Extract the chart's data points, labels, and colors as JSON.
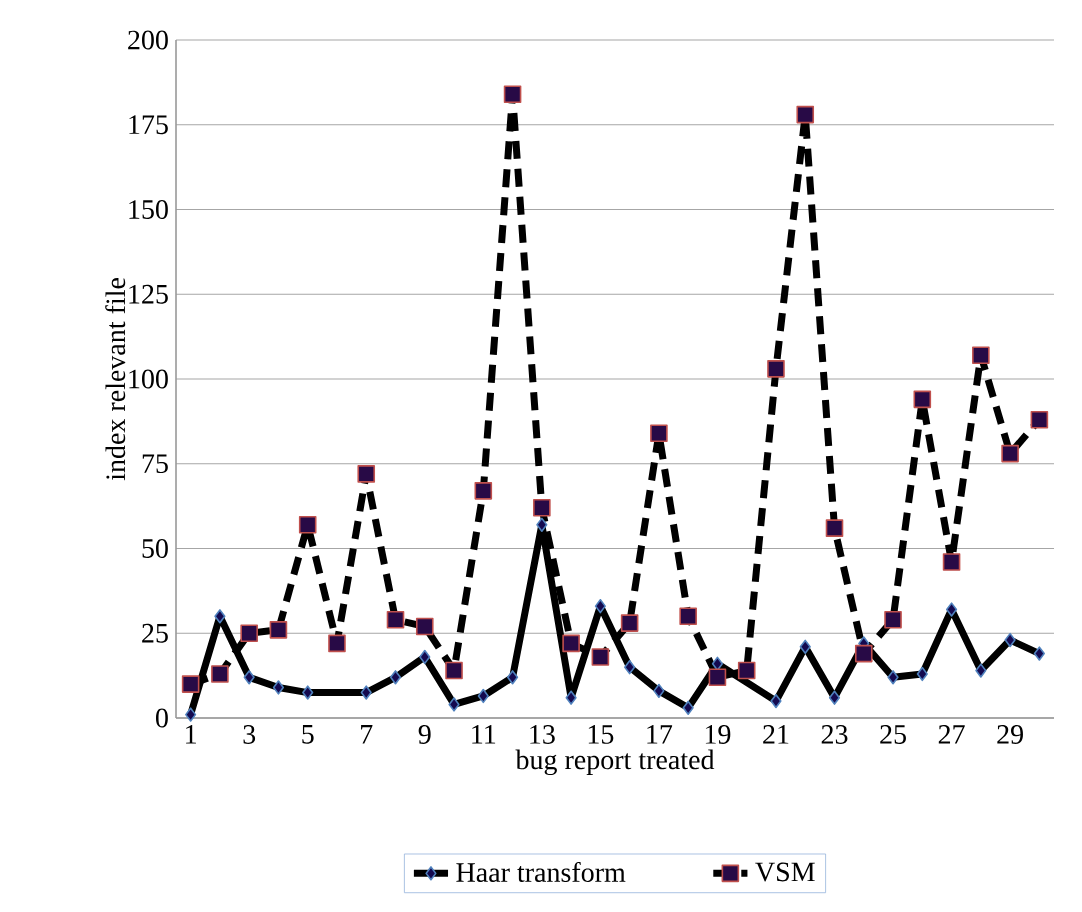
{
  "chart_data": {
    "type": "line",
    "xlabel": "bug report treated",
    "ylabel": "index relevant file",
    "categories": [
      "1",
      null,
      "3",
      null,
      "5",
      null,
      "7",
      null,
      "9",
      null,
      "11",
      null,
      "13",
      null,
      "15",
      null,
      "17",
      null,
      "19",
      null,
      "21",
      null,
      "23",
      null,
      "25",
      null,
      "27",
      null,
      "29",
      null
    ],
    "series": [
      {
        "name": "Haar transform",
        "color": "#000000",
        "marker": "diamond",
        "line_style": "solid",
        "values": [
          1,
          30,
          12,
          9,
          7.5,
          null,
          7.5,
          12,
          18,
          4,
          6.5,
          12,
          57,
          6,
          33,
          15,
          8,
          3,
          16,
          null,
          5,
          21,
          6,
          22,
          12,
          13,
          32,
          14,
          23,
          19
        ]
      },
      {
        "name": "VSM",
        "color": "#000000",
        "marker": "square",
        "line_style": "dashed",
        "values": [
          10,
          13,
          25,
          26,
          57,
          22,
          72,
          29,
          27,
          14,
          67,
          184,
          62,
          22,
          18,
          28,
          84,
          30,
          12,
          14,
          103,
          178,
          56,
          19,
          29,
          94,
          46,
          107,
          78,
          88
        ]
      }
    ],
    "ylim": [
      0,
      200
    ],
    "yticks": [
      0,
      25,
      50,
      75,
      100,
      125,
      150,
      175,
      200
    ],
    "grid": "y",
    "legend": "bottom"
  }
}
